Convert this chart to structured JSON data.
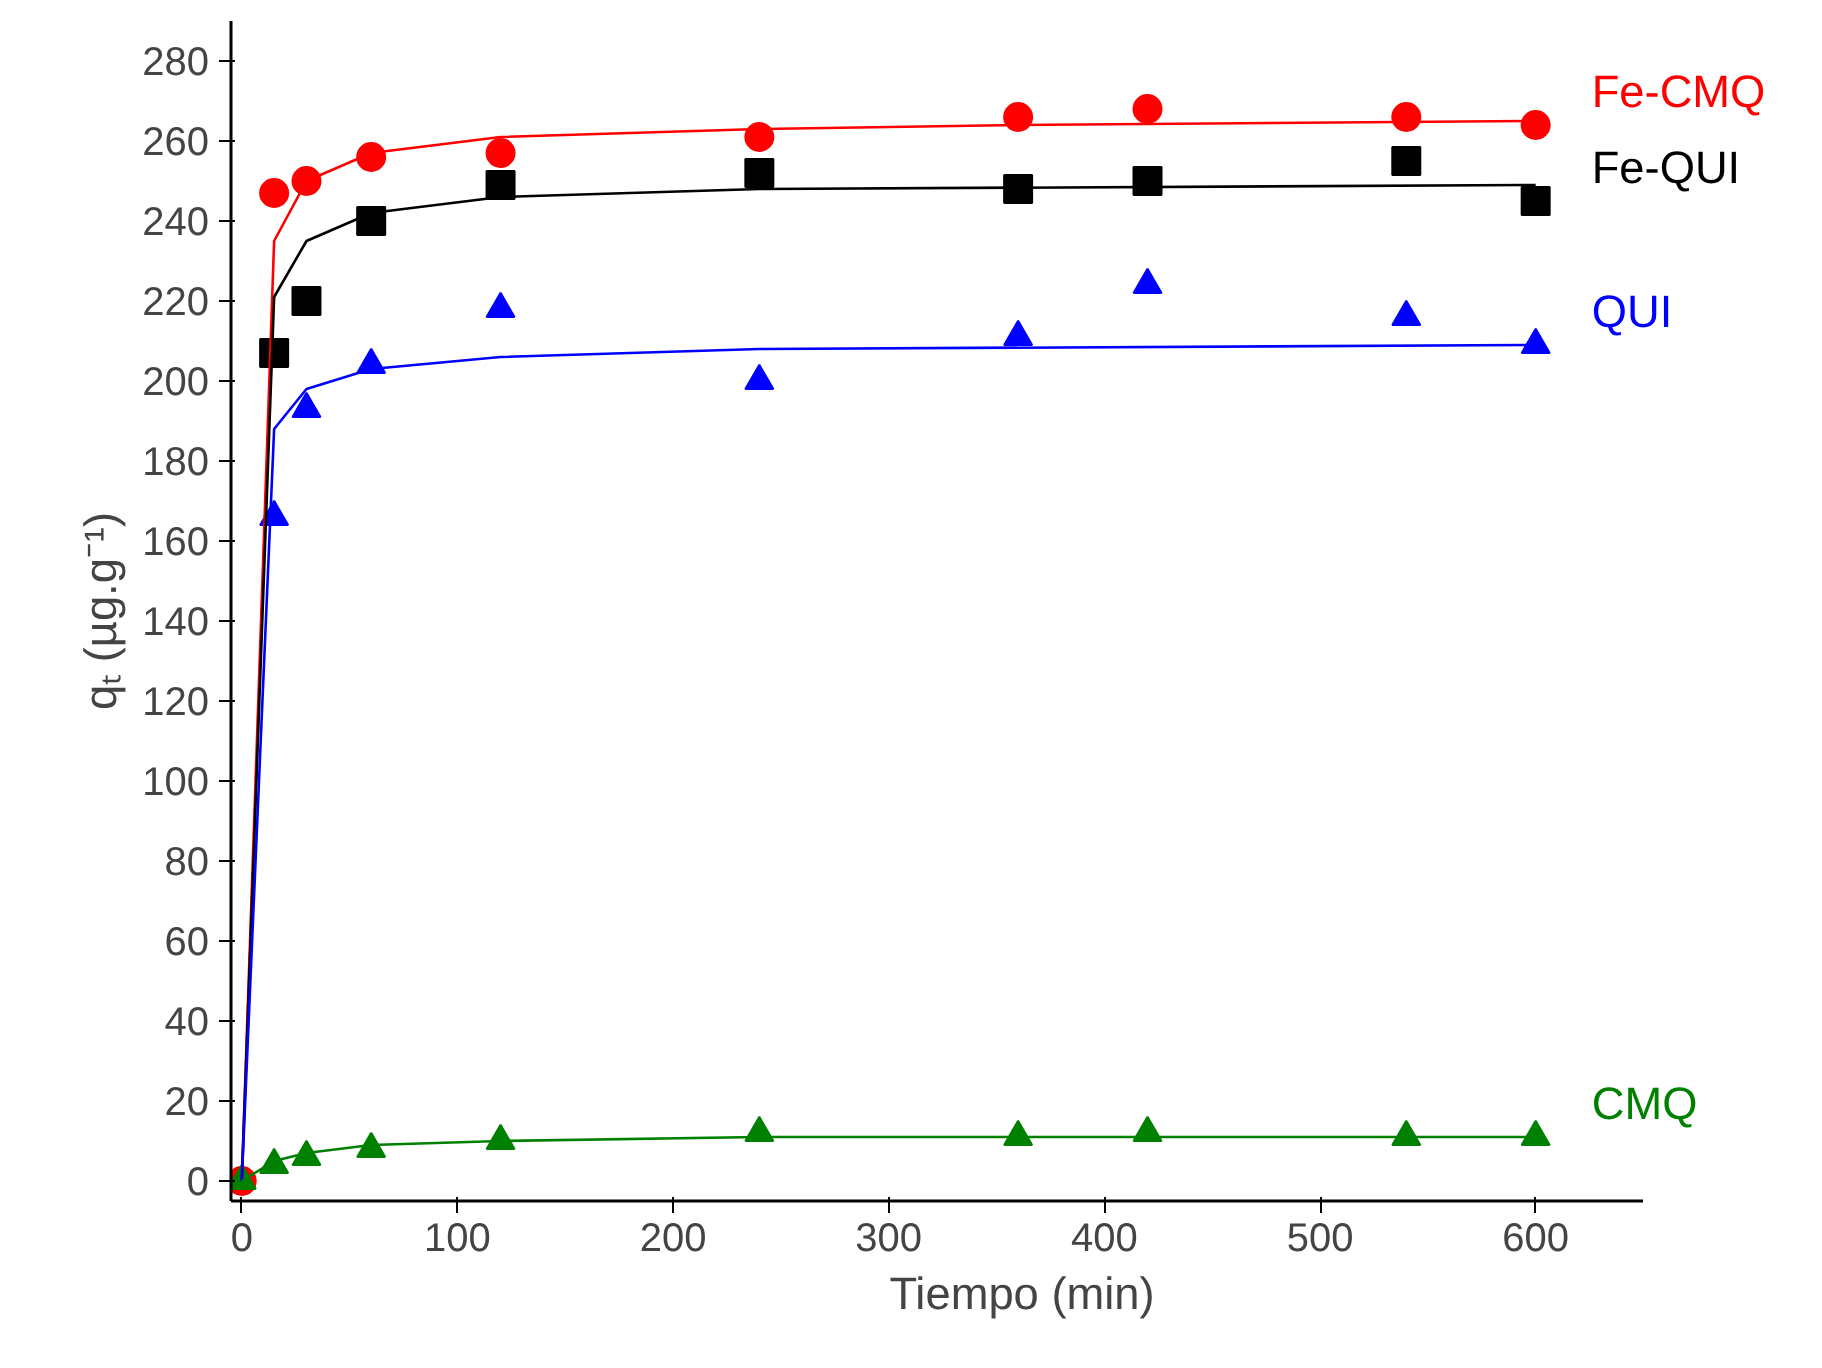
{
  "chart_data": {
    "type": "scatter",
    "xlabel": "Tiempo (min)",
    "ylabel": "qₜ (µg.g⁻¹)",
    "xlim": [
      -5,
      650
    ],
    "ylim": [
      -5,
      290
    ],
    "xticks": [
      0,
      100,
      200,
      300,
      400,
      500,
      600
    ],
    "yticks": [
      0,
      20,
      40,
      60,
      80,
      100,
      120,
      140,
      160,
      180,
      200,
      220,
      240,
      260,
      280
    ],
    "grid": false,
    "series": [
      {
        "name": "Fe-CMQ",
        "color": "#ff0000",
        "marker": "circle",
        "x": [
          0,
          15,
          30,
          60,
          120,
          240,
          360,
          420,
          540,
          600
        ],
        "values": [
          0,
          247,
          250,
          256,
          257,
          261,
          266,
          268,
          266,
          264
        ]
      },
      {
        "name": "Fe-QUI",
        "color": "#000000",
        "marker": "square",
        "x": [
          15,
          30,
          60,
          120,
          240,
          360,
          420,
          540,
          600
        ],
        "values": [
          207,
          220,
          240,
          249,
          252,
          248,
          250,
          255,
          245
        ]
      },
      {
        "name": "QUI",
        "color": "#0000ff",
        "marker": "triangle",
        "x": [
          15,
          30,
          60,
          120,
          240,
          360,
          420,
          540,
          600
        ],
        "values": [
          166,
          193,
          204,
          218,
          200,
          211,
          224,
          216,
          209
        ]
      },
      {
        "name": "CMQ",
        "color": "#008000",
        "marker": "triangle",
        "x": [
          0,
          15,
          30,
          60,
          120,
          240,
          360,
          420,
          540,
          600
        ],
        "values": [
          0,
          4,
          6,
          8,
          10,
          12,
          11,
          12,
          11,
          11
        ]
      },
      {
        "type": "line",
        "color": "#ff0000",
        "x": [
          0,
          15,
          30,
          60,
          120,
          240,
          360,
          600
        ],
        "values": [
          0,
          235,
          250,
          257,
          261,
          263,
          264,
          265
        ]
      },
      {
        "type": "line",
        "color": "#000000",
        "x": [
          0,
          15,
          30,
          60,
          120,
          240,
          600
        ],
        "values": [
          0,
          221,
          235,
          242,
          246,
          248,
          249
        ]
      },
      {
        "type": "line",
        "color": "#0000ff",
        "x": [
          0,
          15,
          30,
          60,
          120,
          240,
          600
        ],
        "values": [
          0,
          188,
          198,
          203,
          206,
          208,
          209
        ]
      },
      {
        "type": "line",
        "color": "#008000",
        "x": [
          0,
          15,
          30,
          60,
          120,
          240,
          600
        ],
        "values": [
          0,
          5,
          7,
          9,
          10,
          11,
          11
        ]
      }
    ]
  }
}
